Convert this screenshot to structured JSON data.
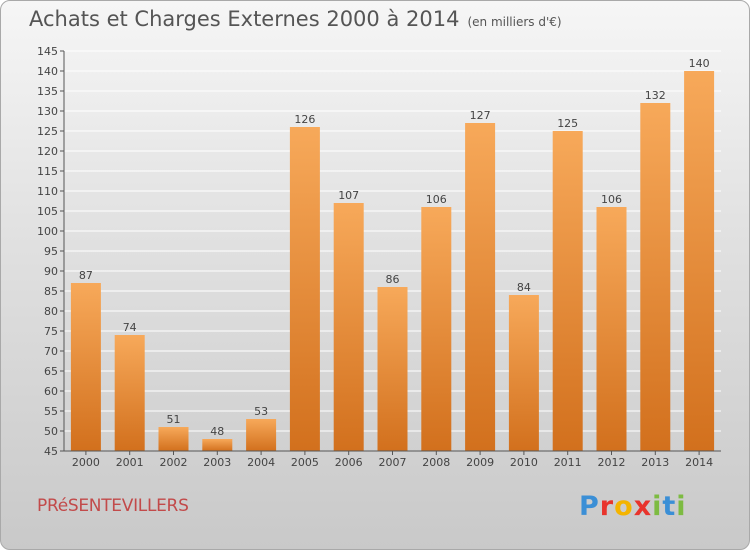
{
  "title": "Achats et Charges Externes 2000 à 2014",
  "unit": "(en milliers d'€)",
  "commune": "PRéSENTEVILLERS",
  "brand": {
    "letters": [
      "P",
      "r",
      "o",
      "x",
      "i",
      "t",
      "i"
    ],
    "colors": [
      "#3b8fd6",
      "#e8342c",
      "#f4b400",
      "#e8342c",
      "#7dbb42",
      "#3b8fd6",
      "#7dbb42"
    ]
  },
  "colors": {
    "bar_light": "#f7a95a",
    "bar_dark": "#d2701d",
    "axis": "#555555"
  },
  "chart_data": {
    "type": "bar",
    "categories": [
      "2000",
      "2001",
      "2002",
      "2003",
      "2004",
      "2005",
      "2006",
      "2007",
      "2008",
      "2009",
      "2010",
      "2011",
      "2012",
      "2013",
      "2014"
    ],
    "values": [
      87,
      74,
      51,
      48,
      53,
      126,
      107,
      86,
      106,
      127,
      84,
      125,
      106,
      132,
      140
    ],
    "ylim": [
      45,
      145
    ],
    "yticks": [
      45,
      50,
      55,
      60,
      65,
      70,
      75,
      80,
      85,
      90,
      95,
      100,
      105,
      110,
      115,
      120,
      125,
      130,
      135,
      140,
      145
    ],
    "grid": true,
    "data_labels": true
  }
}
